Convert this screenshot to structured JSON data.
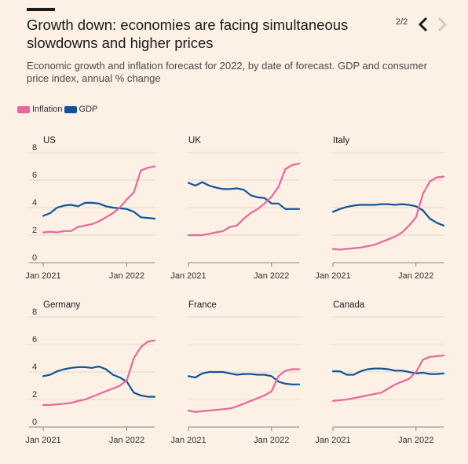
{
  "header": {
    "title": "Growth down: economies are facing simultaneous slowdowns and higher prices",
    "subtitle": "Economic growth and inflation forecast for 2022, by date of forecast. GDP and consumer price index, annual % change",
    "pager": "2/2",
    "prev_icon": "chevron-left-icon",
    "next_icon": "chevron-right-icon"
  },
  "colors": {
    "inflation": "#e8679a",
    "gdp": "#0f5499",
    "grid": "#d8cdc3",
    "axis": "#33302e",
    "background": "#fdf1e6"
  },
  "legend": [
    {
      "label": "Inflation",
      "color": "#e8679a"
    },
    {
      "label": "GDP",
      "color": "#0f5499"
    }
  ],
  "chart_data": [
    {
      "type": "line",
      "title": "US",
      "ylim": [
        0,
        8
      ],
      "yticks": [
        "0",
        "2",
        "4",
        "6",
        "8"
      ],
      "xtick_labels": [
        "Jan 2021",
        "Jan 2022"
      ],
      "x_domain": [
        "2021-01",
        "2022-05"
      ],
      "series": [
        {
          "name": "Inflation",
          "x": [
            "2021-01",
            "2021-02",
            "2021-03",
            "2021-04",
            "2021-05",
            "2021-06",
            "2021-07",
            "2021-08",
            "2021-09",
            "2021-10",
            "2021-11",
            "2021-12",
            "2022-01",
            "2022-02",
            "2022-03",
            "2022-04",
            "2022-05"
          ],
          "values": [
            2.2,
            2.25,
            2.2,
            2.3,
            2.3,
            2.6,
            2.7,
            2.8,
            3.0,
            3.3,
            3.6,
            4.0,
            4.6,
            5.1,
            6.7,
            6.9,
            7.0
          ]
        },
        {
          "name": "GDP",
          "x": [
            "2021-01",
            "2021-02",
            "2021-03",
            "2021-04",
            "2021-05",
            "2021-06",
            "2021-07",
            "2021-08",
            "2021-09",
            "2021-10",
            "2021-11",
            "2021-12",
            "2022-01",
            "2022-02",
            "2022-03",
            "2022-04",
            "2022-05"
          ],
          "values": [
            3.4,
            3.6,
            4.0,
            4.15,
            4.2,
            4.1,
            4.35,
            4.35,
            4.3,
            4.1,
            4.0,
            3.95,
            3.9,
            3.7,
            3.3,
            3.25,
            3.2
          ]
        }
      ]
    },
    {
      "type": "line",
      "title": "UK",
      "ylim": [
        0,
        8
      ],
      "yticks": [],
      "xtick_labels": [
        "Jan 2021",
        "Jan 2022"
      ],
      "x_domain": [
        "2021-01",
        "2022-05"
      ],
      "series": [
        {
          "name": "Inflation",
          "x": [
            "2021-01",
            "2021-02",
            "2021-03",
            "2021-04",
            "2021-05",
            "2021-06",
            "2021-07",
            "2021-08",
            "2021-09",
            "2021-10",
            "2021-11",
            "2021-12",
            "2022-01",
            "2022-02",
            "2022-03",
            "2022-04",
            "2022-05"
          ],
          "values": [
            2.0,
            2.0,
            2.0,
            2.1,
            2.2,
            2.3,
            2.6,
            2.7,
            3.2,
            3.6,
            3.9,
            4.3,
            4.8,
            5.5,
            6.8,
            7.1,
            7.2
          ]
        },
        {
          "name": "GDP",
          "x": [
            "2021-01",
            "2021-02",
            "2021-03",
            "2021-04",
            "2021-05",
            "2021-06",
            "2021-07",
            "2021-08",
            "2021-09",
            "2021-10",
            "2021-11",
            "2021-12",
            "2022-01",
            "2022-02",
            "2022-03",
            "2022-04",
            "2022-05"
          ],
          "values": [
            5.8,
            5.6,
            5.85,
            5.6,
            5.45,
            5.35,
            5.35,
            5.4,
            5.3,
            4.9,
            4.75,
            4.7,
            4.3,
            4.3,
            3.9,
            3.9,
            3.9
          ]
        }
      ]
    },
    {
      "type": "line",
      "title": "Italy",
      "ylim": [
        0,
        8
      ],
      "yticks": [],
      "xtick_labels": [
        "Jan 2021",
        "Jan 2022"
      ],
      "x_domain": [
        "2021-01",
        "2022-05"
      ],
      "series": [
        {
          "name": "Inflation",
          "x": [
            "2021-01",
            "2021-02",
            "2021-03",
            "2021-04",
            "2021-05",
            "2021-06",
            "2021-07",
            "2021-08",
            "2021-09",
            "2021-10",
            "2021-11",
            "2021-12",
            "2022-01",
            "2022-02",
            "2022-03",
            "2022-04",
            "2022-05"
          ],
          "values": [
            1.0,
            0.95,
            1.0,
            1.05,
            1.1,
            1.2,
            1.3,
            1.5,
            1.7,
            1.9,
            2.2,
            2.7,
            3.3,
            5.0,
            5.9,
            6.2,
            6.25
          ]
        },
        {
          "name": "GDP",
          "x": [
            "2021-01",
            "2021-02",
            "2021-03",
            "2021-04",
            "2021-05",
            "2021-06",
            "2021-07",
            "2021-08",
            "2021-09",
            "2021-10",
            "2021-11",
            "2021-12",
            "2022-01",
            "2022-02",
            "2022-03",
            "2022-04",
            "2022-05"
          ],
          "values": [
            3.7,
            3.9,
            4.05,
            4.15,
            4.2,
            4.2,
            4.2,
            4.25,
            4.25,
            4.2,
            4.25,
            4.2,
            4.1,
            3.8,
            3.2,
            2.9,
            2.7
          ]
        }
      ]
    },
    {
      "type": "line",
      "title": "Germany",
      "ylim": [
        0,
        8
      ],
      "yticks": [
        "0",
        "2",
        "4",
        "6",
        "8"
      ],
      "xtick_labels": [
        "Jan 2021",
        "Jan 2022"
      ],
      "x_domain": [
        "2021-01",
        "2022-05"
      ],
      "series": [
        {
          "name": "Inflation",
          "x": [
            "2021-01",
            "2021-02",
            "2021-03",
            "2021-04",
            "2021-05",
            "2021-06",
            "2021-07",
            "2021-08",
            "2021-09",
            "2021-10",
            "2021-11",
            "2021-12",
            "2022-01",
            "2022-02",
            "2022-03",
            "2022-04",
            "2022-05"
          ],
          "values": [
            1.6,
            1.6,
            1.65,
            1.7,
            1.75,
            1.9,
            2.0,
            2.2,
            2.4,
            2.6,
            2.8,
            3.0,
            3.4,
            5.0,
            5.8,
            6.2,
            6.3
          ]
        },
        {
          "name": "GDP",
          "x": [
            "2021-01",
            "2021-02",
            "2021-03",
            "2021-04",
            "2021-05",
            "2021-06",
            "2021-07",
            "2021-08",
            "2021-09",
            "2021-10",
            "2021-11",
            "2021-12",
            "2022-01",
            "2022-02",
            "2022-03",
            "2022-04",
            "2022-05"
          ],
          "values": [
            3.7,
            3.8,
            4.05,
            4.2,
            4.3,
            4.35,
            4.35,
            4.3,
            4.4,
            4.2,
            3.8,
            3.6,
            3.3,
            2.5,
            2.3,
            2.2,
            2.2
          ]
        }
      ]
    },
    {
      "type": "line",
      "title": "France",
      "ylim": [
        0,
        8
      ],
      "yticks": [],
      "xtick_labels": [
        "Jan 2021",
        "Jan 2022"
      ],
      "x_domain": [
        "2021-01",
        "2022-05"
      ],
      "series": [
        {
          "name": "Inflation",
          "x": [
            "2021-01",
            "2021-02",
            "2021-03",
            "2021-04",
            "2021-05",
            "2021-06",
            "2021-07",
            "2021-08",
            "2021-09",
            "2021-10",
            "2021-11",
            "2021-12",
            "2022-01",
            "2022-02",
            "2022-03",
            "2022-04",
            "2022-05"
          ],
          "values": [
            1.2,
            1.1,
            1.15,
            1.2,
            1.25,
            1.3,
            1.35,
            1.5,
            1.7,
            1.9,
            2.1,
            2.3,
            2.6,
            3.7,
            4.1,
            4.2,
            4.2
          ]
        },
        {
          "name": "GDP",
          "x": [
            "2021-01",
            "2021-02",
            "2021-03",
            "2021-04",
            "2021-05",
            "2021-06",
            "2021-07",
            "2021-08",
            "2021-09",
            "2021-10",
            "2021-11",
            "2021-12",
            "2022-01",
            "2022-02",
            "2022-03",
            "2022-04",
            "2022-05"
          ],
          "values": [
            3.7,
            3.6,
            3.9,
            4.0,
            4.0,
            4.0,
            3.9,
            3.8,
            3.85,
            3.85,
            3.8,
            3.8,
            3.7,
            3.3,
            3.15,
            3.1,
            3.1
          ]
        }
      ]
    },
    {
      "type": "line",
      "title": "Canada",
      "ylim": [
        0,
        8
      ],
      "yticks": [],
      "xtick_labels": [
        "Jan 2021",
        "Jan 2022"
      ],
      "x_domain": [
        "2021-01",
        "2022-05"
      ],
      "series": [
        {
          "name": "Inflation",
          "x": [
            "2021-01",
            "2021-02",
            "2021-03",
            "2021-04",
            "2021-05",
            "2021-06",
            "2021-07",
            "2021-08",
            "2021-09",
            "2021-10",
            "2021-11",
            "2021-12",
            "2022-01",
            "2022-02",
            "2022-03",
            "2022-04",
            "2022-05"
          ],
          "values": [
            1.9,
            1.95,
            2.0,
            2.1,
            2.2,
            2.3,
            2.4,
            2.5,
            2.8,
            3.1,
            3.3,
            3.5,
            4.0,
            4.9,
            5.1,
            5.15,
            5.2
          ]
        },
        {
          "name": "GDP",
          "x": [
            "2021-01",
            "2021-02",
            "2021-03",
            "2021-04",
            "2021-05",
            "2021-06",
            "2021-07",
            "2021-08",
            "2021-09",
            "2021-10",
            "2021-11",
            "2021-12",
            "2022-01",
            "2022-02",
            "2022-03",
            "2022-04",
            "2022-05"
          ],
          "values": [
            4.05,
            4.05,
            3.8,
            3.8,
            4.05,
            4.2,
            4.25,
            4.25,
            4.2,
            4.1,
            4.1,
            4.0,
            3.9,
            3.95,
            3.85,
            3.85,
            3.9
          ]
        }
      ]
    }
  ]
}
